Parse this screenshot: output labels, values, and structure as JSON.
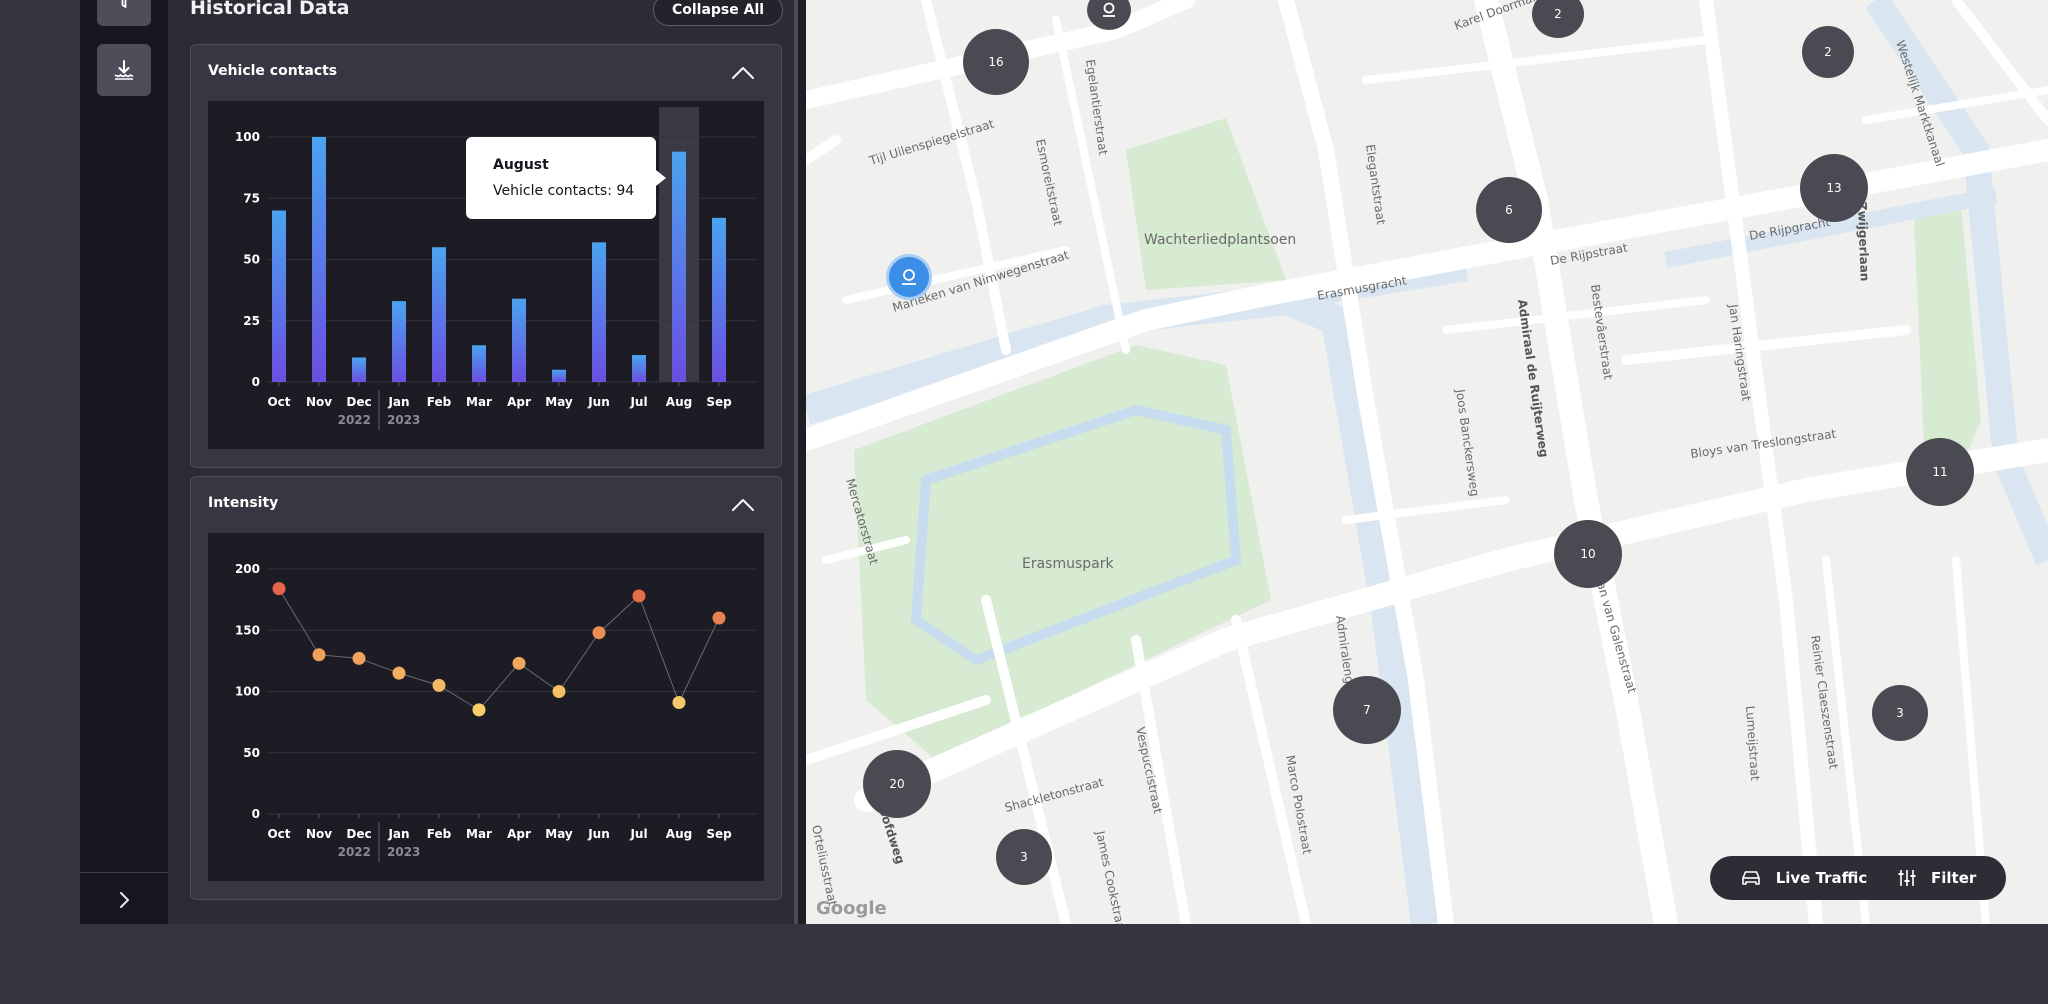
{
  "panel": {
    "title": "Historical Data",
    "collapse_all_label": "Collapse All"
  },
  "vehicle_card": {
    "title": "Vehicle contacts",
    "tooltip": {
      "title": "August",
      "text": "Vehicle contacts: 94"
    }
  },
  "intensity_card": {
    "title": "Intensity"
  },
  "chart_data": [
    {
      "type": "bar",
      "categories": [
        "Oct",
        "Nov",
        "Dec",
        "Jan",
        "Feb",
        "Mar",
        "Apr",
        "May",
        "Jun",
        "Jul",
        "Aug",
        "Sep"
      ],
      "year_labels": [
        "2022",
        "2023"
      ],
      "values": [
        70,
        100,
        10,
        33,
        55,
        15,
        34,
        5,
        57,
        11,
        94,
        67
      ],
      "yticks": [
        "0",
        "25",
        "50",
        "75",
        "100"
      ],
      "ylim": [
        0,
        100
      ],
      "highlighted": "Aug",
      "colors": {
        "top": "#4aa3f0",
        "bottom": "#6a4fe0"
      }
    },
    {
      "type": "scatter",
      "categories": [
        "Oct",
        "Nov",
        "Dec",
        "Jan",
        "Feb",
        "Mar",
        "Apr",
        "May",
        "Jun",
        "Jul",
        "Aug",
        "Sep"
      ],
      "year_labels": [
        "2022",
        "2023"
      ],
      "values": [
        184,
        130,
        127,
        115,
        105,
        85,
        123,
        100,
        148,
        178,
        91,
        160
      ],
      "yticks": [
        "0",
        "50",
        "100",
        "150",
        "200"
      ],
      "ylim": [
        0,
        200
      ],
      "colors": {
        "high": "#e5674a",
        "low": "#f7cf6a"
      }
    }
  ],
  "map": {
    "street_labels": [
      "Tijl Uilenspiegelstraat",
      "Esmoreitstraat",
      "Egelantierstraat",
      "Wachterliedplantsoen",
      "Mariëken van Nimwegenstraat",
      "Erasmusgracht",
      "De Rijpstraat",
      "Admiraal de Ruijterweg",
      "Elegantstraat",
      "Bestevâerstraat",
      "Jan Haringstraat",
      "Joos Banckersweg",
      "Bloys van Treslongstraat",
      "Mercatorstraat",
      "Erasmuspark",
      "Admiralengracht",
      "Vespuccistraat",
      "Shackletonstraat",
      "James Cookstraat",
      "Marco Polostraat",
      "Reinier Claeszenstraat",
      "Lumeijstraat",
      "Jan van Galenstraat",
      "Westelijk Marktkanaal",
      "De Rijpgracht",
      "Zwijgerlaan",
      "Karel Doorman",
      "Hoofdweg",
      "Orteliusstraat"
    ],
    "clusters": [
      "16",
      "2",
      "2",
      "6",
      "13",
      "11",
      "10",
      "7",
      "3",
      "20",
      "3"
    ],
    "google_label": "Google"
  },
  "controls": {
    "live_traffic_label": "Live Traffic",
    "filter_label": "Filter"
  },
  "icons": [
    "filter-funnel-icon",
    "download-icon",
    "chevron-right-icon",
    "chevron-up-icon",
    "car-icon",
    "sliders-icon",
    "pin-icon"
  ]
}
